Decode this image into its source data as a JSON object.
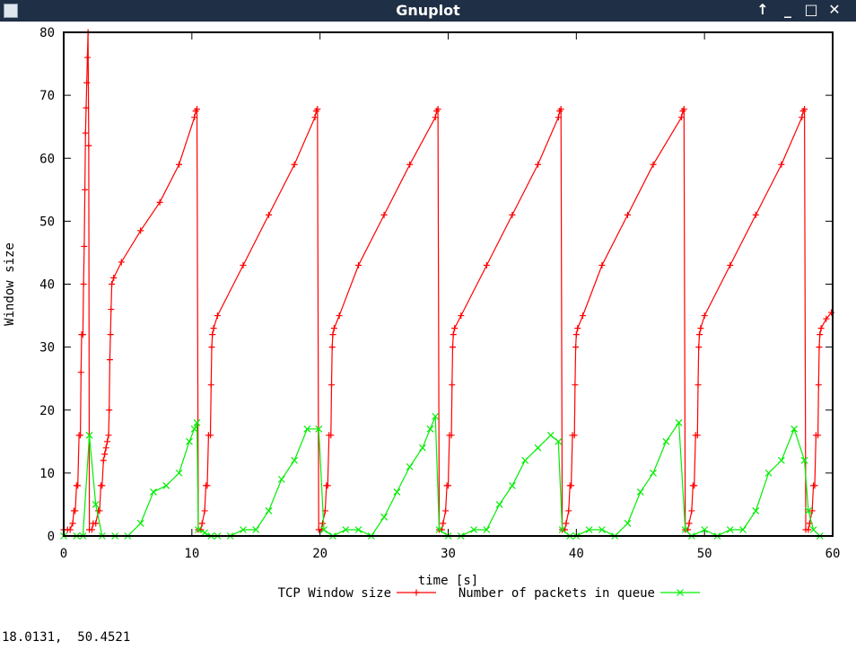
{
  "window": {
    "title": "Gnuplot",
    "controls": {
      "raise": "↑",
      "minimize": "_",
      "maximize": "□",
      "close": "✕"
    }
  },
  "status_readout": "18.0131,  50.4521",
  "chart_data": {
    "type": "line",
    "title": "",
    "xlabel": "time [s]",
    "ylabel": "Window size",
    "xlim": [
      0,
      60
    ],
    "ylim": [
      0,
      80
    ],
    "xticks": [
      0,
      10,
      20,
      30,
      40,
      50,
      60
    ],
    "yticks": [
      0,
      10,
      20,
      30,
      40,
      50,
      60,
      70,
      80
    ],
    "grid": false,
    "legend_position": "bottom-center",
    "series": [
      {
        "name": "TCP Window size",
        "color": "#ff0000",
        "marker": "plus",
        "points": [
          [
            0,
            1
          ],
          [
            0.3,
            1
          ],
          [
            0.5,
            1
          ],
          [
            0.7,
            2
          ],
          [
            0.8,
            4
          ],
          [
            0.9,
            4
          ],
          [
            1.0,
            8
          ],
          [
            1.1,
            8
          ],
          [
            1.2,
            16
          ],
          [
            1.3,
            16
          ],
          [
            1.35,
            26
          ],
          [
            1.4,
            32
          ],
          [
            1.5,
            32
          ],
          [
            1.55,
            40
          ],
          [
            1.6,
            46
          ],
          [
            1.65,
            55
          ],
          [
            1.7,
            64
          ],
          [
            1.75,
            68
          ],
          [
            1.8,
            72
          ],
          [
            1.85,
            76
          ],
          [
            1.9,
            80
          ],
          [
            1.95,
            62
          ],
          [
            2.0,
            1
          ],
          [
            2.2,
            1
          ],
          [
            2.3,
            2
          ],
          [
            2.5,
            2
          ],
          [
            2.7,
            4
          ],
          [
            2.8,
            4
          ],
          [
            2.9,
            8
          ],
          [
            3.0,
            8
          ],
          [
            3.1,
            12
          ],
          [
            3.2,
            13
          ],
          [
            3.3,
            14
          ],
          [
            3.4,
            15
          ],
          [
            3.5,
            16
          ],
          [
            3.55,
            20
          ],
          [
            3.6,
            28
          ],
          [
            3.65,
            32
          ],
          [
            3.7,
            36
          ],
          [
            3.75,
            40
          ],
          [
            3.9,
            41
          ],
          [
            4.5,
            43.5
          ],
          [
            6,
            48.5
          ],
          [
            7.5,
            53
          ],
          [
            9,
            59
          ],
          [
            10.2,
            66.5
          ],
          [
            10.3,
            67.5
          ],
          [
            10.4,
            67.8
          ],
          [
            10.5,
            1
          ],
          [
            10.7,
            1
          ],
          [
            10.8,
            2
          ],
          [
            11.0,
            4
          ],
          [
            11.1,
            8
          ],
          [
            11.2,
            8
          ],
          [
            11.3,
            16
          ],
          [
            11.45,
            16
          ],
          [
            11.5,
            24
          ],
          [
            11.55,
            30
          ],
          [
            11.6,
            32
          ],
          [
            11.7,
            33
          ],
          [
            12,
            35
          ],
          [
            14,
            43
          ],
          [
            16,
            51
          ],
          [
            18,
            59
          ],
          [
            19.6,
            66.5
          ],
          [
            19.7,
            67.5
          ],
          [
            19.8,
            67.8
          ],
          [
            19.9,
            1
          ],
          [
            20.1,
            1
          ],
          [
            20.2,
            2
          ],
          [
            20.4,
            4
          ],
          [
            20.5,
            8
          ],
          [
            20.6,
            8
          ],
          [
            20.7,
            16
          ],
          [
            20.85,
            16
          ],
          [
            20.9,
            24
          ],
          [
            20.95,
            30
          ],
          [
            21.0,
            32
          ],
          [
            21.1,
            33
          ],
          [
            21.5,
            35
          ],
          [
            23,
            43
          ],
          [
            25,
            51
          ],
          [
            27,
            59
          ],
          [
            29.0,
            66.5
          ],
          [
            29.1,
            67.5
          ],
          [
            29.2,
            67.8
          ],
          [
            29.3,
            1
          ],
          [
            29.5,
            1
          ],
          [
            29.6,
            2
          ],
          [
            29.8,
            4
          ],
          [
            29.9,
            8
          ],
          [
            30.0,
            8
          ],
          [
            30.1,
            16
          ],
          [
            30.25,
            16
          ],
          [
            30.3,
            24
          ],
          [
            30.35,
            30
          ],
          [
            30.4,
            32
          ],
          [
            30.5,
            33
          ],
          [
            31,
            35
          ],
          [
            33,
            43
          ],
          [
            35,
            51
          ],
          [
            37,
            59
          ],
          [
            38.6,
            66.5
          ],
          [
            38.7,
            67.5
          ],
          [
            38.8,
            67.8
          ],
          [
            38.9,
            1
          ],
          [
            39.1,
            1
          ],
          [
            39.2,
            2
          ],
          [
            39.4,
            4
          ],
          [
            39.5,
            8
          ],
          [
            39.6,
            8
          ],
          [
            39.7,
            16
          ],
          [
            39.85,
            16
          ],
          [
            39.9,
            24
          ],
          [
            39.95,
            30
          ],
          [
            40.0,
            32
          ],
          [
            40.1,
            33
          ],
          [
            40.5,
            35
          ],
          [
            42,
            43
          ],
          [
            44,
            51
          ],
          [
            46,
            59
          ],
          [
            48.2,
            66.5
          ],
          [
            48.3,
            67.5
          ],
          [
            48.4,
            67.8
          ],
          [
            48.5,
            1
          ],
          [
            48.7,
            1
          ],
          [
            48.8,
            2
          ],
          [
            49.0,
            4
          ],
          [
            49.1,
            8
          ],
          [
            49.2,
            8
          ],
          [
            49.3,
            16
          ],
          [
            49.45,
            16
          ],
          [
            49.5,
            24
          ],
          [
            49.55,
            30
          ],
          [
            49.6,
            32
          ],
          [
            49.7,
            33
          ],
          [
            50,
            35
          ],
          [
            52,
            43
          ],
          [
            54,
            51
          ],
          [
            56,
            59
          ],
          [
            57.6,
            66.5
          ],
          [
            57.7,
            67.5
          ],
          [
            57.8,
            67.8
          ],
          [
            57.9,
            1
          ],
          [
            58.1,
            1
          ],
          [
            58.2,
            2
          ],
          [
            58.4,
            4
          ],
          [
            58.5,
            8
          ],
          [
            58.6,
            8
          ],
          [
            58.7,
            16
          ],
          [
            58.85,
            16
          ],
          [
            58.9,
            24
          ],
          [
            58.95,
            30
          ],
          [
            59.0,
            32
          ],
          [
            59.1,
            33
          ],
          [
            59.5,
            34.5
          ],
          [
            59.9,
            35.5
          ]
        ]
      },
      {
        "name": "Number of packets in queue",
        "color": "#00ee00",
        "marker": "cross",
        "points": [
          [
            0,
            0
          ],
          [
            1,
            0
          ],
          [
            1.5,
            0
          ],
          [
            2.0,
            16
          ],
          [
            2.5,
            5
          ],
          [
            3,
            0
          ],
          [
            4,
            0
          ],
          [
            5,
            0
          ],
          [
            6,
            2
          ],
          [
            7,
            7
          ],
          [
            8,
            8
          ],
          [
            9,
            10
          ],
          [
            9.8,
            15
          ],
          [
            10.2,
            17
          ],
          [
            10.4,
            18
          ],
          [
            10.5,
            1
          ],
          [
            11,
            0.5
          ],
          [
            11.5,
            0
          ],
          [
            12,
            0
          ],
          [
            13,
            0
          ],
          [
            14,
            1
          ],
          [
            15,
            1
          ],
          [
            16,
            4
          ],
          [
            17,
            9
          ],
          [
            18,
            12
          ],
          [
            19,
            17
          ],
          [
            19.9,
            17
          ],
          [
            20.3,
            1
          ],
          [
            21,
            0
          ],
          [
            22,
            1
          ],
          [
            23,
            1
          ],
          [
            24,
            0
          ],
          [
            25,
            3
          ],
          [
            26,
            7
          ],
          [
            27,
            11
          ],
          [
            28,
            14
          ],
          [
            28.6,
            17
          ],
          [
            29.0,
            19
          ],
          [
            29.3,
            1
          ],
          [
            30,
            0
          ],
          [
            31,
            0
          ],
          [
            32,
            1
          ],
          [
            33,
            1
          ],
          [
            34,
            5
          ],
          [
            35,
            8
          ],
          [
            36,
            12
          ],
          [
            37,
            14
          ],
          [
            38,
            16
          ],
          [
            38.6,
            15
          ],
          [
            38.9,
            1
          ],
          [
            39.5,
            0
          ],
          [
            40,
            0
          ],
          [
            41,
            1
          ],
          [
            42,
            1
          ],
          [
            43,
            0
          ],
          [
            44,
            2
          ],
          [
            45,
            7
          ],
          [
            46,
            10
          ],
          [
            47,
            15
          ],
          [
            48,
            18
          ],
          [
            48.5,
            1
          ],
          [
            49,
            0
          ],
          [
            50,
            1
          ],
          [
            51,
            0
          ],
          [
            52,
            1
          ],
          [
            53,
            1
          ],
          [
            54,
            4
          ],
          [
            55,
            10
          ],
          [
            56,
            12
          ],
          [
            57,
            17
          ],
          [
            57.8,
            12
          ],
          [
            58.1,
            4
          ],
          [
            58.5,
            1
          ],
          [
            59,
            0
          ]
        ]
      }
    ]
  }
}
